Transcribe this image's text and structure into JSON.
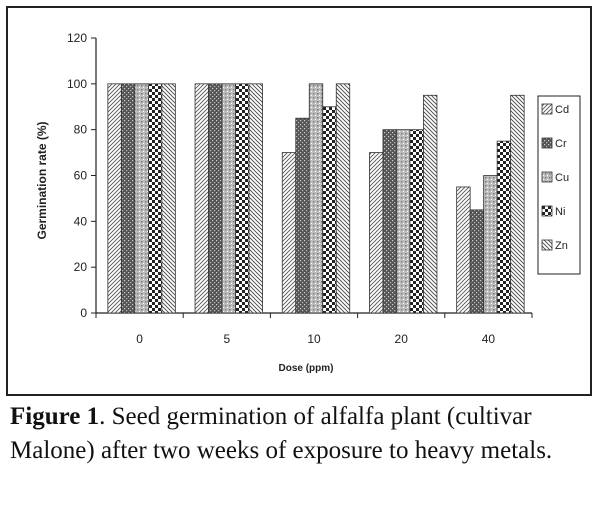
{
  "chart_data": {
    "type": "bar",
    "categories": [
      "0",
      "5",
      "10",
      "20",
      "40"
    ],
    "series": [
      {
        "name": "Cd",
        "values": [
          100,
          100,
          70,
          70,
          55
        ],
        "pattern": "pat-diag"
      },
      {
        "name": "Cr",
        "values": [
          100,
          100,
          85,
          80,
          45
        ],
        "pattern": "pat-dark"
      },
      {
        "name": "Cu",
        "values": [
          100,
          100,
          100,
          80,
          60
        ],
        "pattern": "pat-light"
      },
      {
        "name": "Ni",
        "values": [
          100,
          100,
          90,
          80,
          75
        ],
        "pattern": "pat-check"
      },
      {
        "name": "Zn",
        "values": [
          100,
          100,
          100,
          95,
          95
        ],
        "pattern": "pat-back"
      }
    ],
    "yticks": [
      "0",
      "20",
      "40",
      "60",
      "80",
      "100",
      "120"
    ],
    "ylim": [
      0,
      120
    ],
    "xlabel": "Dose (ppm)",
    "ylabel": "Germination rate (%)",
    "legend_position": "right",
    "grid": false
  },
  "caption": {
    "label": "Figure 1",
    "text": ". Seed germination of alfalfa plant (cultivar Malone) after two weeks of exposure to heavy metals."
  }
}
